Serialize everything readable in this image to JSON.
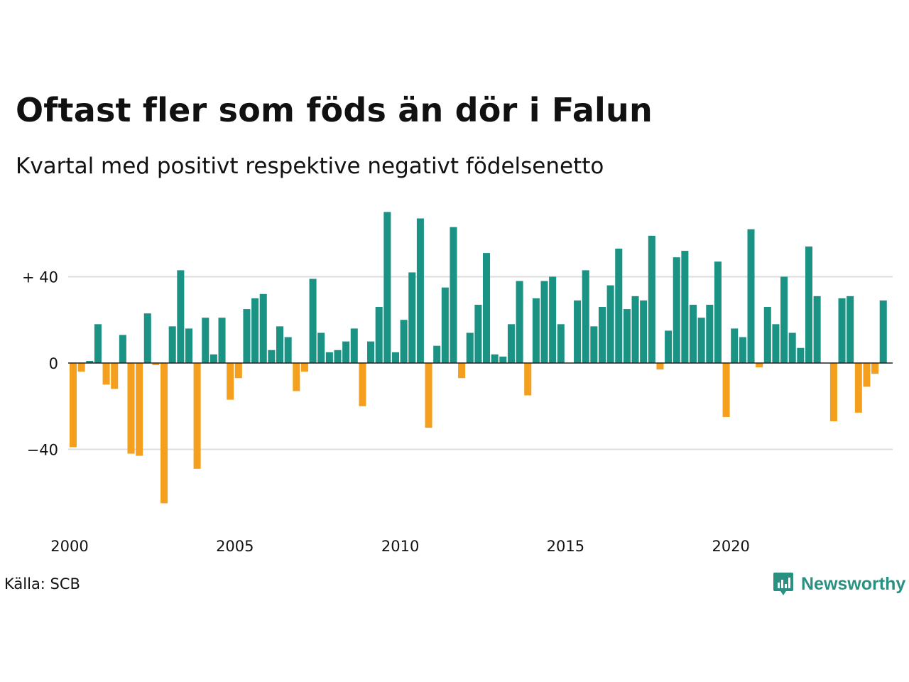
{
  "title": "Oftast fler som föds än dör i Falun",
  "subtitle": "Kvartal med positivt respektive negativt födelsenetto",
  "source": "Källa: SCB",
  "brand": {
    "name": "Newsworthy",
    "logo_icon": "bar-chart-speech-bubble-icon",
    "color": "#2a9082"
  },
  "colors": {
    "positive": "#1a9385",
    "negative": "#f4a01e",
    "grid": "#dddddd",
    "zero_line": "#222222"
  },
  "chart_data": {
    "type": "bar",
    "x_start": 2000,
    "periods_per_year": 4,
    "x_ticks": [
      2000,
      2005,
      2010,
      2015,
      2020
    ],
    "y_ticks": [
      {
        "value": 40,
        "label": "+ 40"
      },
      {
        "value": 0,
        "label": "0"
      },
      {
        "value": -40,
        "label": "−40"
      }
    ],
    "ylim": [
      -70,
      72
    ],
    "grid": true,
    "values": [
      -39,
      -4,
      1,
      18,
      -10,
      -12,
      13,
      -42,
      -43,
      23,
      -1,
      -65,
      17,
      43,
      16,
      -49,
      21,
      4,
      21,
      -17,
      -7,
      25,
      30,
      32,
      6,
      17,
      12,
      -13,
      -4,
      39,
      14,
      5,
      6,
      10,
      16,
      -20,
      10,
      26,
      70,
      5,
      20,
      42,
      67,
      -30,
      8,
      35,
      63,
      -7,
      14,
      27,
      51,
      4,
      3,
      18,
      38,
      -15,
      30,
      38,
      40,
      18,
      0,
      29,
      43,
      17,
      26,
      36,
      53,
      25,
      31,
      29,
      59,
      -3,
      15,
      49,
      52,
      27,
      21,
      27,
      47,
      -25,
      16,
      12,
      62,
      -2,
      26,
      18,
      40,
      14,
      7,
      54,
      31,
      0,
      -27,
      30,
      31,
      -23,
      -11,
      -5,
      29
    ]
  }
}
